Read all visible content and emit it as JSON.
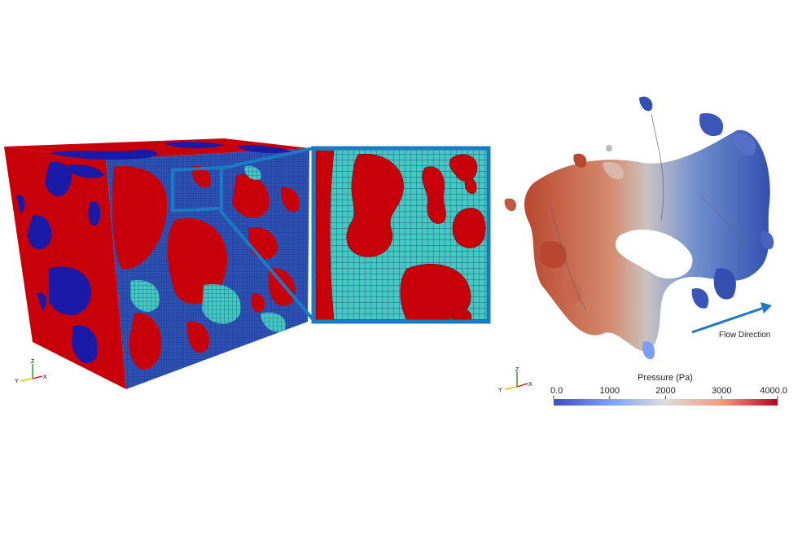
{
  "colors": {
    "solid": "#c8000a",
    "pore": "#1a1aa8",
    "mesh": "#45c8c0",
    "mesh_line": "#0b3f7a",
    "frame": "#1a7bc4",
    "arrow": "#1a7bc4",
    "low": "#3b4cc0",
    "mid": "#dddddd",
    "high": "#b40426"
  },
  "axes_triad": {
    "left": {
      "z": "Z",
      "y": "Y",
      "x": "X"
    },
    "right": {
      "z": "Z",
      "y": "Y",
      "x": "X"
    }
  },
  "annotation": {
    "flow_direction": "Flow Direction"
  },
  "colorbar": {
    "title": "Pressure (Pa)",
    "ticks": [
      "0.0",
      "1000",
      "2000",
      "3000",
      "4000.0"
    ],
    "range": [
      0,
      4000
    ]
  }
}
